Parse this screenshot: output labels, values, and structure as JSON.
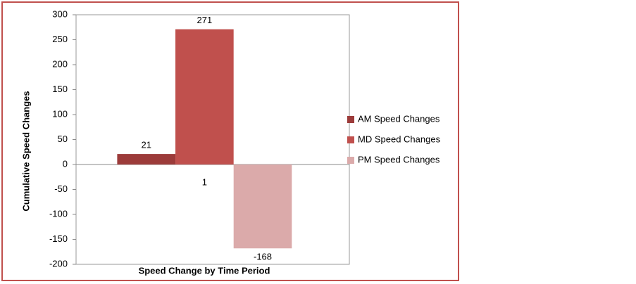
{
  "chart_data": {
    "type": "bar",
    "x_label": "Speed Change by Time Period",
    "y_label": "Cumulative Speed Changes",
    "categories": [
      "1"
    ],
    "series": [
      {
        "name": "AM Speed Changes",
        "color": "#9c3b3a",
        "values": [
          21
        ]
      },
      {
        "name": "MD Speed Changes",
        "color": "#c0504d",
        "values": [
          271
        ]
      },
      {
        "name": "PM Speed Changes",
        "color": "#dbaaaa",
        "values": [
          -168
        ]
      }
    ],
    "ylim": [
      -200,
      300
    ],
    "yticks": [
      -200,
      -150,
      -100,
      -50,
      0,
      50,
      100,
      150,
      200,
      250,
      300
    ],
    "grid": false,
    "data_labels": true,
    "legend": "right"
  }
}
